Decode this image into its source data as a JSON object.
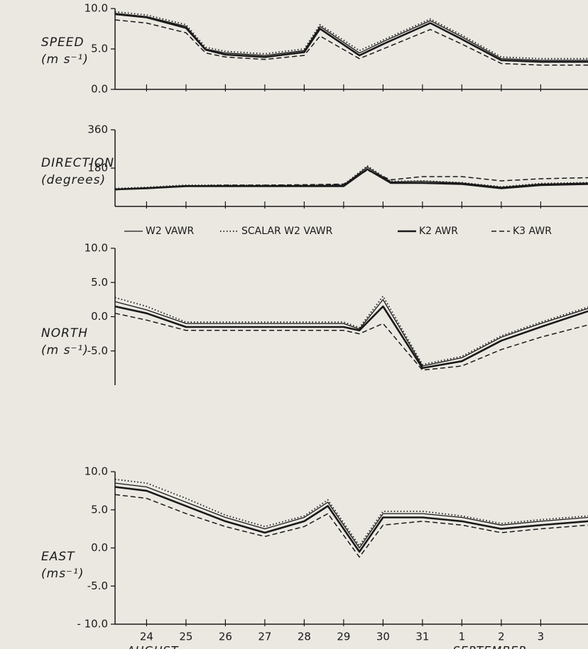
{
  "chart_data": [
    {
      "type": "line",
      "ylabel": [
        "SPEED",
        "(m s⁻¹)"
      ],
      "xlim": [
        -0.8,
        11.2
      ],
      "ylim": [
        0,
        10
      ],
      "yticks": [
        {
          "value": 10,
          "label": "10.0"
        },
        {
          "value": 5,
          "label": "5.0"
        },
        {
          "value": 0,
          "label": "0.0"
        }
      ],
      "x": [
        -0.8,
        0,
        1,
        1.5,
        2,
        3,
        4,
        4.4,
        5.4,
        6,
        7.2,
        8,
        9,
        10,
        11.2
      ],
      "series": [
        {
          "name": "W2 VAWR",
          "color": "#1a1a1a",
          "style": "thin",
          "values": [
            9.4,
            9.0,
            7.8,
            5.0,
            4.5,
            4.2,
            4.8,
            7.8,
            4.5,
            5.9,
            8.5,
            6.5,
            3.8,
            3.6,
            3.6
          ]
        },
        {
          "name": "SCALAR W2 VAWR",
          "color": "#1a1a1a",
          "style": "dotted",
          "values": [
            9.6,
            9.2,
            8.0,
            5.2,
            4.7,
            4.4,
            5.0,
            8.0,
            4.8,
            6.1,
            8.7,
            6.7,
            4.0,
            3.8,
            3.8
          ]
        },
        {
          "name": "K2 AWR",
          "color": "#1a1a1a",
          "style": "thick",
          "values": [
            9.3,
            8.9,
            7.6,
            4.9,
            4.3,
            4.0,
            4.6,
            7.5,
            4.2,
            5.6,
            8.2,
            6.2,
            3.6,
            3.4,
            3.4
          ]
        },
        {
          "name": "K3 AWR",
          "color": "#1a1a1a",
          "style": "dashed",
          "values": [
            8.6,
            8.2,
            7.0,
            4.5,
            4.0,
            3.7,
            4.2,
            6.6,
            3.8,
            5.0,
            7.4,
            5.6,
            3.2,
            3.0,
            3.0
          ]
        }
      ]
    },
    {
      "type": "line",
      "ylabel": [
        "DIRECTION",
        "(degrees)"
      ],
      "xlim": [
        -0.8,
        11.2
      ],
      "ylim": [
        0,
        360
      ],
      "yticks": [
        360,
        180
      ],
      "x": [
        -0.8,
        0,
        1,
        2,
        3,
        4,
        5,
        5.6,
        6.2,
        7,
        8,
        9,
        10,
        11.2
      ],
      "series": [
        {
          "color": "#1a1a1a",
          "style": "thin",
          "values": [
            82,
            88,
            98,
            98,
            98,
            98,
            100,
            185,
            115,
            118,
            110,
            90,
            105,
            110
          ]
        },
        {
          "color": "#1a1a1a",
          "style": "dotted",
          "values": [
            84,
            90,
            100,
            100,
            100,
            100,
            102,
            190,
            118,
            120,
            112,
            92,
            108,
            112
          ]
        },
        {
          "color": "#1a1a1a",
          "style": "thick",
          "values": [
            80,
            85,
            95,
            95,
            95,
            95,
            95,
            175,
            110,
            110,
            105,
            85,
            100,
            105
          ]
        },
        {
          "color": "#1a1a1a",
          "style": "dashed",
          "values": [
            78,
            86,
            96,
            100,
            100,
            102,
            105,
            170,
            125,
            140,
            140,
            120,
            130,
            135
          ]
        }
      ]
    },
    {
      "type": "line",
      "ylabel": [
        "NORTH",
        "(m s⁻¹)"
      ],
      "xlim": [
        -0.8,
        11.2
      ],
      "ylim": [
        -10,
        10
      ],
      "yticks": [
        {
          "value": 10,
          "label": "10.0"
        },
        {
          "value": 5,
          "label": "5.0"
        },
        {
          "value": 0,
          "label": "0.0"
        },
        {
          "value": -5,
          "label": "-5.0"
        }
      ],
      "x": [
        -0.8,
        0,
        1,
        2,
        3,
        4,
        5,
        5.4,
        6,
        7,
        8,
        9,
        10,
        11.2
      ],
      "series": [
        {
          "color": "#1a1a1a",
          "style": "thin",
          "values": [
            2.2,
            1.0,
            -1.0,
            -1.0,
            -1.0,
            -1.0,
            -1.0,
            -1.8,
            2.5,
            -7.2,
            -6.0,
            -3.0,
            -1.0,
            1.2
          ]
        },
        {
          "color": "#1a1a1a",
          "style": "dotted",
          "values": [
            2.8,
            1.5,
            -0.8,
            -0.8,
            -0.8,
            -0.8,
            -0.8,
            -1.6,
            3.0,
            -7.0,
            -5.8,
            -2.8,
            -0.8,
            1.4
          ]
        },
        {
          "color": "#1a1a1a",
          "style": "thick",
          "values": [
            1.5,
            0.5,
            -1.5,
            -1.5,
            -1.5,
            -1.5,
            -1.5,
            -2.0,
            1.5,
            -7.5,
            -6.5,
            -3.5,
            -1.5,
            0.8
          ]
        },
        {
          "color": "#1a1a1a",
          "style": "dashed",
          "values": [
            0.5,
            -0.5,
            -2.0,
            -2.0,
            -2.0,
            -2.0,
            -2.0,
            -2.5,
            -1.0,
            -7.8,
            -7.2,
            -4.8,
            -3.0,
            -1.2
          ]
        }
      ]
    },
    {
      "type": "line",
      "ylabel": [
        "EAST",
        "(ms⁻¹)"
      ],
      "xlim": [
        -0.8,
        11.2
      ],
      "ylim": [
        -10,
        10
      ],
      "yticks": [
        {
          "value": 10,
          "label": "10.0"
        },
        {
          "value": 5,
          "label": "5.0"
        },
        {
          "value": 0,
          "label": "0.0"
        },
        {
          "value": -5,
          "label": "-5.0"
        },
        {
          "value": -10,
          "label": "- 10.0"
        }
      ],
      "xticks": [
        {
          "value": 0,
          "label": "24"
        },
        {
          "value": 1,
          "label": "25"
        },
        {
          "value": 2,
          "label": "26"
        },
        {
          "value": 3,
          "label": "27"
        },
        {
          "value": 4,
          "label": "28"
        },
        {
          "value": 5,
          "label": "29"
        },
        {
          "value": 6,
          "label": "30"
        },
        {
          "value": 7,
          "label": "31"
        },
        {
          "value": 8,
          "label": "1"
        },
        {
          "value": 9,
          "label": "2"
        },
        {
          "value": 10,
          "label": "3"
        }
      ],
      "month_labels": [
        "AUGUST",
        "SEPTEMBER"
      ],
      "x": [
        -0.8,
        0,
        1,
        2,
        3,
        4,
        4.6,
        5.4,
        6,
        7,
        8,
        9,
        10,
        11.2
      ],
      "series": [
        {
          "color": "#1a1a1a",
          "style": "thin",
          "values": [
            8.5,
            8.0,
            6.0,
            4.0,
            2.5,
            4.0,
            6.0,
            0.0,
            4.5,
            4.5,
            4.0,
            3.0,
            3.5,
            4.0
          ]
        },
        {
          "color": "#1a1a1a",
          "style": "dotted",
          "values": [
            9.0,
            8.5,
            6.5,
            4.3,
            2.8,
            4.2,
            6.3,
            0.3,
            4.8,
            4.8,
            4.2,
            3.2,
            3.7,
            4.2
          ]
        },
        {
          "color": "#1a1a1a",
          "style": "thick",
          "values": [
            8.0,
            7.5,
            5.5,
            3.5,
            2.0,
            3.5,
            5.5,
            -0.5,
            4.0,
            4.0,
            3.5,
            2.5,
            3.0,
            3.5
          ]
        },
        {
          "color": "#1a1a1a",
          "style": "dashed",
          "values": [
            7.0,
            6.5,
            4.5,
            2.8,
            1.5,
            2.8,
            4.5,
            -1.2,
            3.0,
            3.5,
            3.0,
            2.0,
            2.5,
            3.0
          ]
        }
      ]
    }
  ]
}
